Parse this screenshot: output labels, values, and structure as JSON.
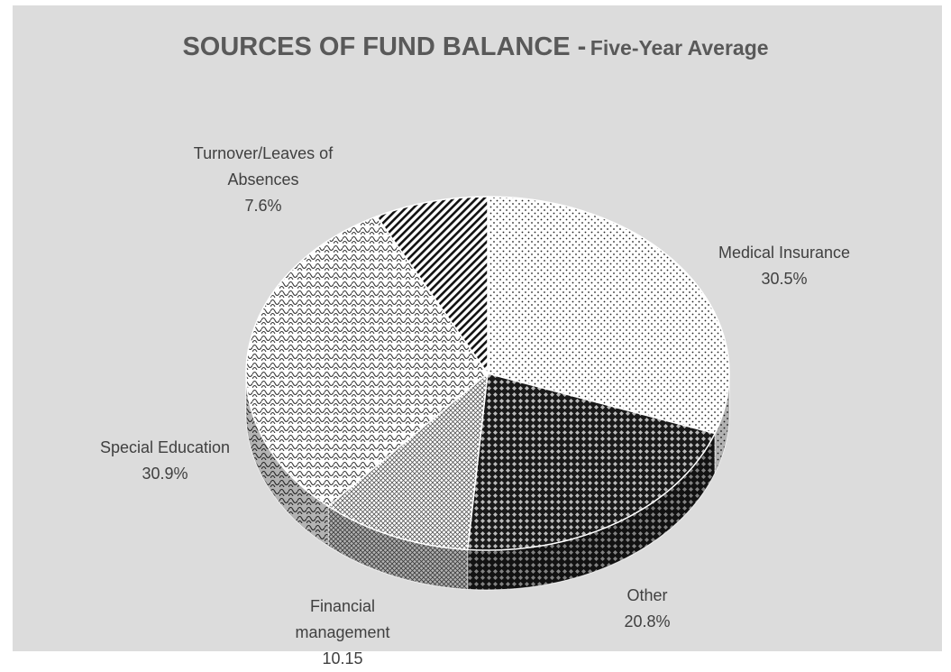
{
  "chart_data": {
    "type": "pie3d",
    "title": "SOURCES OF FUND BALANCE -",
    "subtitle": "Five-Year Average",
    "categories": [
      "Medical Insurance",
      "Other",
      "Financial management",
      "Special Education",
      "Turnover/Leaves of Absences"
    ],
    "values": [
      30.5,
      20.8,
      10.15,
      30.9,
      7.6
    ],
    "value_labels": [
      "30.5%",
      "20.8%",
      "10.15",
      "30.9%",
      "7.6%"
    ]
  }
}
